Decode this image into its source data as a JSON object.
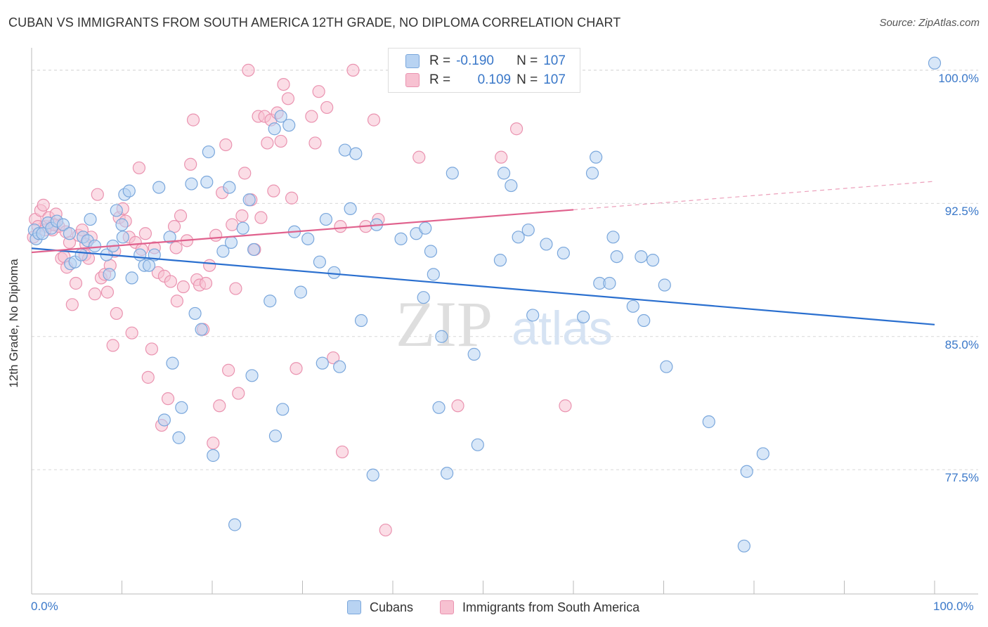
{
  "title": "CUBAN VS IMMIGRANTS FROM SOUTH AMERICA 12TH GRADE, NO DIPLOMA CORRELATION CHART",
  "source": "Source: ZipAtlas.com",
  "watermark": {
    "zip": "ZIP",
    "atlas": "atlas"
  },
  "legend": {
    "r_label": "R =",
    "n_label": "N =",
    "series": [
      {
        "r": "-0.190",
        "n": "107"
      },
      {
        "r": "0.109",
        "n": "107"
      }
    ]
  },
  "colors": {
    "blue_fill": "#b8d3f2",
    "blue_stroke": "#7aa7dc",
    "blue_line": "#2a6fcf",
    "pink_fill": "#f7c1d1",
    "pink_stroke": "#ea93b0",
    "pink_line": "#e0618d",
    "grid": "#d8d8d8",
    "tick_text": "#3a78c9"
  },
  "chart_data": {
    "type": "scatter",
    "title": "CUBAN VS IMMIGRANTS FROM SOUTH AMERICA 12TH GRADE, NO DIPLOMA CORRELATION CHART",
    "xlabel": "",
    "ylabel": "12th Grade, No Diploma",
    "xlim": [
      0,
      100
    ],
    "ylim": [
      70.5,
      101.5
    ],
    "x_tick_labels": [
      "0.0%",
      "100.0%"
    ],
    "y_ticks": [
      77.5,
      85.0,
      92.5,
      100.0
    ],
    "y_tick_labels": [
      "77.5%",
      "85.0%",
      "92.5%",
      "100.0%"
    ],
    "grid": true,
    "legend_position": "bottom-center",
    "series": [
      {
        "name": "Cubans",
        "trend": {
          "x": [
            0,
            100
          ],
          "y": [
            89.97,
            85.67
          ],
          "solid_to": 100
        },
        "points": [
          [
            0.3,
            91.0
          ],
          [
            0.5,
            90.5
          ],
          [
            0.8,
            90.8
          ],
          [
            1.2,
            90.8
          ],
          [
            1.8,
            91.4
          ],
          [
            2.2,
            91.1
          ],
          [
            2.8,
            91.5
          ],
          [
            3.5,
            91.3
          ],
          [
            4.2,
            90.8
          ],
          [
            4.3,
            89.1
          ],
          [
            4.8,
            89.2
          ],
          [
            5.5,
            89.6
          ],
          [
            5.7,
            90.6
          ],
          [
            6.2,
            90.4
          ],
          [
            6.5,
            91.6
          ],
          [
            7.0,
            90.1
          ],
          [
            8.3,
            89.6
          ],
          [
            8.6,
            88.5
          ],
          [
            9.0,
            90.1
          ],
          [
            9.4,
            92.1
          ],
          [
            10.0,
            91.3
          ],
          [
            10.1,
            90.6
          ],
          [
            10.3,
            93.0
          ],
          [
            10.8,
            93.2
          ],
          [
            11.1,
            88.3
          ],
          [
            12.0,
            89.6
          ],
          [
            12.5,
            89.0
          ],
          [
            13.0,
            89.0
          ],
          [
            13.6,
            89.6
          ],
          [
            14.1,
            93.4
          ],
          [
            14.7,
            80.3
          ],
          [
            15.3,
            90.6
          ],
          [
            15.6,
            83.5
          ],
          [
            16.3,
            79.3
          ],
          [
            16.6,
            81.0
          ],
          [
            17.7,
            93.6
          ],
          [
            18.1,
            86.3
          ],
          [
            18.8,
            85.4
          ],
          [
            19.4,
            93.7
          ],
          [
            19.6,
            95.4
          ],
          [
            20.1,
            78.3
          ],
          [
            21.2,
            89.8
          ],
          [
            21.9,
            93.4
          ],
          [
            22.1,
            90.3
          ],
          [
            22.5,
            74.4
          ],
          [
            23.4,
            91.1
          ],
          [
            24.1,
            92.7
          ],
          [
            24.4,
            82.8
          ],
          [
            24.6,
            89.9
          ],
          [
            26.4,
            87.0
          ],
          [
            26.9,
            96.7
          ],
          [
            27.0,
            79.4
          ],
          [
            27.6,
            97.4
          ],
          [
            27.8,
            80.9
          ],
          [
            28.5,
            96.9
          ],
          [
            29.1,
            90.9
          ],
          [
            29.8,
            87.5
          ],
          [
            30.6,
            90.5
          ],
          [
            31.9,
            89.2
          ],
          [
            32.2,
            83.5
          ],
          [
            32.6,
            91.6
          ],
          [
            33.5,
            88.6
          ],
          [
            34.1,
            83.3
          ],
          [
            34.7,
            95.5
          ],
          [
            35.3,
            92.2
          ],
          [
            35.9,
            95.3
          ],
          [
            36.5,
            85.9
          ],
          [
            37.8,
            77.2
          ],
          [
            38.2,
            91.3
          ],
          [
            40.9,
            90.5
          ],
          [
            42.6,
            90.8
          ],
          [
            43.4,
            87.2
          ],
          [
            43.6,
            91.1
          ],
          [
            44.2,
            89.8
          ],
          [
            44.5,
            88.5
          ],
          [
            45.1,
            81.0
          ],
          [
            45.4,
            85.0
          ],
          [
            46.0,
            77.3
          ],
          [
            46.6,
            94.2
          ],
          [
            49.0,
            84.0
          ],
          [
            49.4,
            78.9
          ],
          [
            51.9,
            89.3
          ],
          [
            52.3,
            94.2
          ],
          [
            53.1,
            93.5
          ],
          [
            53.9,
            90.6
          ],
          [
            55.0,
            91.0
          ],
          [
            55.5,
            86.2
          ],
          [
            57.0,
            90.2
          ],
          [
            58.9,
            89.7
          ],
          [
            61.1,
            86.1
          ],
          [
            62.1,
            94.2
          ],
          [
            62.5,
            95.1
          ],
          [
            62.9,
            88.0
          ],
          [
            64.0,
            88.0
          ],
          [
            64.4,
            90.6
          ],
          [
            64.8,
            89.5
          ],
          [
            66.6,
            86.7
          ],
          [
            67.5,
            89.5
          ],
          [
            67.8,
            85.9
          ],
          [
            68.8,
            89.3
          ],
          [
            70.1,
            87.9
          ],
          [
            70.3,
            83.3
          ],
          [
            75.0,
            80.2
          ],
          [
            78.9,
            73.2
          ],
          [
            79.2,
            77.4
          ],
          [
            81.0,
            78.4
          ],
          [
            100.0,
            100.4
          ]
        ]
      },
      {
        "name": "Immigrants from South America",
        "trend": {
          "x": [
            0,
            100
          ],
          "y": [
            89.74,
            93.74
          ],
          "solid_to": 60
        },
        "points": [
          [
            0.2,
            90.6
          ],
          [
            0.4,
            91.6
          ],
          [
            0.7,
            91.2
          ],
          [
            1.0,
            92.1
          ],
          [
            1.3,
            92.4
          ],
          [
            1.6,
            91.2
          ],
          [
            1.9,
            91.7
          ],
          [
            2.3,
            91.0
          ],
          [
            2.7,
            91.9
          ],
          [
            3.0,
            91.2
          ],
          [
            3.3,
            89.4
          ],
          [
            3.6,
            89.5
          ],
          [
            3.9,
            88.9
          ],
          [
            4.2,
            90.3
          ],
          [
            4.5,
            86.8
          ],
          [
            4.9,
            88.0
          ],
          [
            5.2,
            90.7
          ],
          [
            5.6,
            91.0
          ],
          [
            5.9,
            89.6
          ],
          [
            6.3,
            89.4
          ],
          [
            6.6,
            90.6
          ],
          [
            7.0,
            87.4
          ],
          [
            7.3,
            93.0
          ],
          [
            7.7,
            88.3
          ],
          [
            8.1,
            88.5
          ],
          [
            8.4,
            87.5
          ],
          [
            8.7,
            89.0
          ],
          [
            9.0,
            84.5
          ],
          [
            9.4,
            86.3
          ],
          [
            9.7,
            91.7
          ],
          [
            10.1,
            92.2
          ],
          [
            10.4,
            91.5
          ],
          [
            10.8,
            90.6
          ],
          [
            11.1,
            85.2
          ],
          [
            11.5,
            90.3
          ],
          [
            11.9,
            94.5
          ],
          [
            12.2,
            89.9
          ],
          [
            12.6,
            90.8
          ],
          [
            12.9,
            82.7
          ],
          [
            13.3,
            84.3
          ],
          [
            13.6,
            90.0
          ],
          [
            14.0,
            88.6
          ],
          [
            14.4,
            80.0
          ],
          [
            14.7,
            88.4
          ],
          [
            15.1,
            81.5
          ],
          [
            15.4,
            88.1
          ],
          [
            15.8,
            91.2
          ],
          [
            16.1,
            87.0
          ],
          [
            16.5,
            91.8
          ],
          [
            16.8,
            87.8
          ],
          [
            17.2,
            90.4
          ],
          [
            17.6,
            94.7
          ],
          [
            17.9,
            97.2
          ],
          [
            18.3,
            88.2
          ],
          [
            18.6,
            87.9
          ],
          [
            19.0,
            85.4
          ],
          [
            19.3,
            88.0
          ],
          [
            19.7,
            89.0
          ],
          [
            20.1,
            79.0
          ],
          [
            20.4,
            90.7
          ],
          [
            20.8,
            81.1
          ],
          [
            21.1,
            93.1
          ],
          [
            21.5,
            95.8
          ],
          [
            21.8,
            83.1
          ],
          [
            22.2,
            91.3
          ],
          [
            22.6,
            87.7
          ],
          [
            22.9,
            81.8
          ],
          [
            23.3,
            91.8
          ],
          [
            23.6,
            94.2
          ],
          [
            24.0,
            100.0
          ],
          [
            24.3,
            92.7
          ],
          [
            24.7,
            89.9
          ],
          [
            25.1,
            97.4
          ],
          [
            25.4,
            91.7
          ],
          [
            25.8,
            97.4
          ],
          [
            26.1,
            95.9
          ],
          [
            26.5,
            97.2
          ],
          [
            26.8,
            93.2
          ],
          [
            27.2,
            97.6
          ],
          [
            27.6,
            96.0
          ],
          [
            27.9,
            99.2
          ],
          [
            28.4,
            98.4
          ],
          [
            28.8,
            92.8
          ],
          [
            29.3,
            83.2
          ],
          [
            31.0,
            97.4
          ],
          [
            31.4,
            95.9
          ],
          [
            31.8,
            98.8
          ],
          [
            32.7,
            97.9
          ],
          [
            33.4,
            83.8
          ],
          [
            34.2,
            91.2
          ],
          [
            34.4,
            78.5
          ],
          [
            35.6,
            100.0
          ],
          [
            37.0,
            91.2
          ],
          [
            37.9,
            97.2
          ],
          [
            38.4,
            91.6
          ],
          [
            39.2,
            74.1
          ],
          [
            42.9,
            95.1
          ],
          [
            47.2,
            81.1
          ],
          [
            52.0,
            95.1
          ],
          [
            53.7,
            96.7
          ],
          [
            59.1,
            81.1
          ],
          [
            1.5,
            91.0
          ],
          [
            2.5,
            91.3
          ],
          [
            3.8,
            90.9
          ],
          [
            6.0,
            90.2
          ],
          [
            9.2,
            89.8
          ],
          [
            16.0,
            90.0
          ]
        ]
      }
    ]
  },
  "bottom_legend": [
    "Cubans",
    "Immigrants from South America"
  ]
}
